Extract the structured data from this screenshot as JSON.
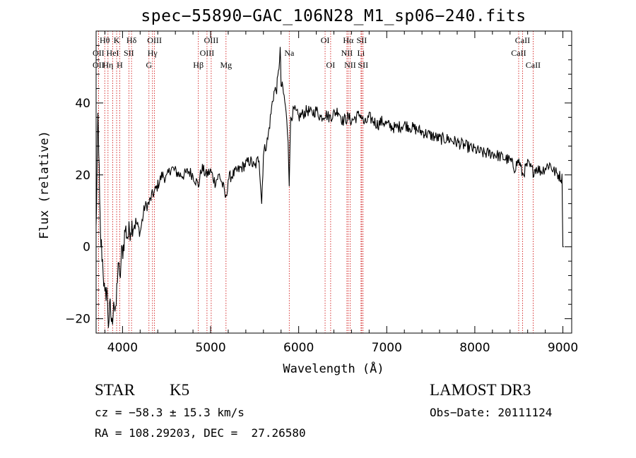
{
  "chart_data": {
    "type": "line",
    "title": "spec−55890−GAC_106N28_M1_sp06−240.fits",
    "xlabel": "Wavelength (Å)",
    "ylabel": "Flux (relative)",
    "xlim": [
      3700,
      9100
    ],
    "ylim": [
      -24,
      60
    ],
    "x_ticks": [
      4000,
      5000,
      6000,
      7000,
      8000,
      9000
    ],
    "y_ticks": [
      -20,
      0,
      20,
      40
    ],
    "grid": false,
    "legend": "none",
    "series": [
      {
        "name": "spectrum",
        "x": [
          3700,
          3710,
          3720,
          3730,
          3740,
          3750,
          3760,
          3780,
          3800,
          3820,
          3840,
          3860,
          3880,
          3900,
          3920,
          3935,
          3950,
          3968,
          3990,
          4010,
          4030,
          4060,
          4100,
          4150,
          4200,
          4250,
          4300,
          4330,
          4380,
          4450,
          4500,
          4550,
          4600,
          4650,
          4700,
          4750,
          4800,
          4861,
          4900,
          4950,
          5000,
          5050,
          5100,
          5150,
          5175,
          5200,
          5250,
          5300,
          5350,
          5400,
          5450,
          5500,
          5550,
          5580,
          5600,
          5650,
          5700,
          5720,
          5750,
          5770,
          5790,
          5800,
          5820,
          5850,
          5880,
          5893,
          5910,
          5950,
          6000,
          6050,
          6100,
          6150,
          6200,
          6250,
          6300,
          6350,
          6400,
          6450,
          6500,
          6563,
          6600,
          6650,
          6700,
          6750,
          6800,
          6850,
          6900,
          6950,
          7000,
          7100,
          7200,
          7300,
          7400,
          7500,
          7600,
          7700,
          7800,
          7900,
          8000,
          8100,
          8200,
          8300,
          8400,
          8450,
          8500,
          8542,
          8600,
          8662,
          8700,
          8750,
          8800,
          8850,
          8900,
          8950,
          8990,
          9000,
          9005,
          9010
        ],
        "values": [
          5,
          19,
          36,
          28,
          12,
          2,
          0,
          -6,
          -15,
          -11,
          -21,
          -17,
          -22,
          -14,
          -20,
          -12,
          -4,
          -10,
          -2,
          0,
          5,
          3,
          6,
          7,
          4,
          11,
          12,
          14,
          16,
          20,
          19,
          22,
          21,
          20,
          20,
          21,
          20,
          17,
          22,
          20,
          21,
          18,
          20,
          16,
          13,
          19,
          20,
          21,
          22,
          23,
          24,
          22,
          25,
          12,
          26,
          30,
          40,
          43,
          44,
          48,
          55,
          45,
          44,
          39,
          30,
          18,
          36,
          38,
          36,
          37,
          38,
          37,
          38,
          36,
          37,
          36,
          37,
          38,
          35,
          36,
          35,
          36,
          37,
          34,
          36,
          35,
          34,
          35,
          34,
          33,
          34,
          33,
          32,
          31,
          30,
          30,
          29,
          28,
          27,
          26,
          26,
          25,
          24,
          22,
          24,
          20,
          23,
          21,
          22,
          21,
          22,
          23,
          21,
          20,
          19,
          0,
          0,
          0
        ]
      }
    ],
    "lines": [
      {
        "wavelength": 3727,
        "label": "OII",
        "row": 2
      },
      {
        "wavelength": 3727,
        "label": "OII",
        "row": 3
      },
      {
        "wavelength": 3798,
        "label": "Hθ",
        "row": 1
      },
      {
        "wavelength": 3835,
        "label": "Hη",
        "row": 3
      },
      {
        "wavelength": 3889,
        "label": "HeI",
        "row": 2
      },
      {
        "wavelength": 3933,
        "label": "K",
        "row": 1
      },
      {
        "wavelength": 3968,
        "label": "H",
        "row": 3
      },
      {
        "wavelength": 4072,
        "label": "SII",
        "row": 2
      },
      {
        "wavelength": 4102,
        "label": "Hδ",
        "row": 1
      },
      {
        "wavelength": 4300,
        "label": "G",
        "row": 3
      },
      {
        "wavelength": 4340,
        "label": "Hγ",
        "row": 2
      },
      {
        "wavelength": 4363,
        "label": "OIII",
        "row": 1
      },
      {
        "wavelength": 4861,
        "label": "Hβ",
        "row": 3
      },
      {
        "wavelength": 4959,
        "label": "OIII",
        "row": 2
      },
      {
        "wavelength": 5007,
        "label": "OIII",
        "row": 1
      },
      {
        "wavelength": 5175,
        "label": "Mg",
        "row": 3
      },
      {
        "wavelength": 5893,
        "label": "Na",
        "row": 2
      },
      {
        "wavelength": 6300,
        "label": "OI",
        "row": 1
      },
      {
        "wavelength": 6363,
        "label": "OI",
        "row": 3
      },
      {
        "wavelength": 6548,
        "label": "NII",
        "row": 2
      },
      {
        "wavelength": 6563,
        "label": "Hα",
        "row": 1
      },
      {
        "wavelength": 6584,
        "label": "NII",
        "row": 3
      },
      {
        "wavelength": 6708,
        "label": "Li",
        "row": 2
      },
      {
        "wavelength": 6716,
        "label": "SII",
        "row": 1
      },
      {
        "wavelength": 6731,
        "label": "SII",
        "row": 3
      },
      {
        "wavelength": 8498,
        "label": "CaII",
        "row": 2
      },
      {
        "wavelength": 8542,
        "label": "CaII",
        "row": 1
      },
      {
        "wavelength": 8662,
        "label": "CaII",
        "row": 3
      }
    ]
  },
  "info": {
    "class_label": "STAR",
    "subclass": "K5",
    "survey": "LAMOST DR3",
    "cz": "cz = −58.3 ± 15.3 km/s",
    "obs_date": "Obs−Date: 20111124",
    "coords": "RA = 108.29203, DEC =  27.26580"
  },
  "colors": {
    "spectrum": "#000000",
    "line_markers": "#cc0000",
    "axes": "#000000"
  }
}
